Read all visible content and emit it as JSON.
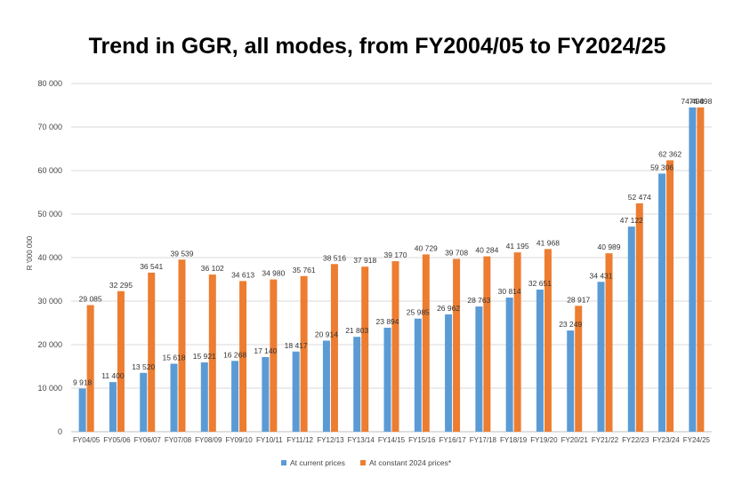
{
  "chart_data": {
    "type": "bar",
    "title": "Trend in GGR, all modes, from FY2004/05 to FY2024/25",
    "xlabel": "",
    "ylabel": "R '000 000",
    "ylim": [
      0,
      80000
    ],
    "yticks": [
      0,
      10000,
      20000,
      30000,
      40000,
      50000,
      60000,
      70000,
      80000
    ],
    "ytick_labels": [
      "0",
      "10 000",
      "20 000",
      "30 000",
      "40 000",
      "50 000",
      "60 000",
      "70 000",
      "80 000"
    ],
    "grid": true,
    "legend_position": "bottom-center",
    "categories": [
      "FY04/05",
      "FY05/06",
      "FY06/07",
      "FY07/08",
      "FY08/09",
      "FY09/10",
      "FY10/11",
      "FY11/12",
      "FY12/13",
      "FY13/14",
      "FY14/15",
      "FY15/16",
      "FY16/17",
      "FY17/18",
      "FY18/19",
      "FY19/20",
      "FY20/21",
      "FY21/22",
      "FY22/23",
      "FY23/24",
      "FY24/25"
    ],
    "series": [
      {
        "name": "At current prices",
        "color": "#5b9bd5",
        "values": [
          9918,
          11400,
          13520,
          15618,
          15921,
          16268,
          17140,
          18417,
          20914,
          21803,
          23894,
          25985,
          26962,
          28763,
          30814,
          32651,
          23249,
          34431,
          47122,
          59306,
          74498
        ],
        "labels": [
          "9 918",
          "11 400",
          "13 520",
          "15 618",
          "15 921",
          "16 268",
          "17 140",
          "18 417",
          "20 914",
          "21 803",
          "23 894",
          "25 985",
          "26 962",
          "28 763",
          "30 814",
          "32 651",
          "23 249",
          "34 431",
          "47 122",
          "59 306",
          "74 498"
        ]
      },
      {
        "name": "At constant 2024 prices*",
        "color": "#ed7d31",
        "values": [
          29085,
          32295,
          36541,
          39539,
          36102,
          34613,
          34980,
          35761,
          38516,
          37918,
          39170,
          40729,
          39708,
          40284,
          41195,
          41968,
          28917,
          40989,
          52474,
          62362,
          74498
        ],
        "labels": [
          "29 085",
          "32 295",
          "36 541",
          "39 539",
          "36 102",
          "34 613",
          "34 980",
          "35 761",
          "38 516",
          "37 918",
          "39 170",
          "40 729",
          "39 708",
          "40 284",
          "41 195",
          "41 968",
          "28 917",
          "40 989",
          "52 474",
          "62 362",
          "74 498"
        ]
      }
    ]
  }
}
